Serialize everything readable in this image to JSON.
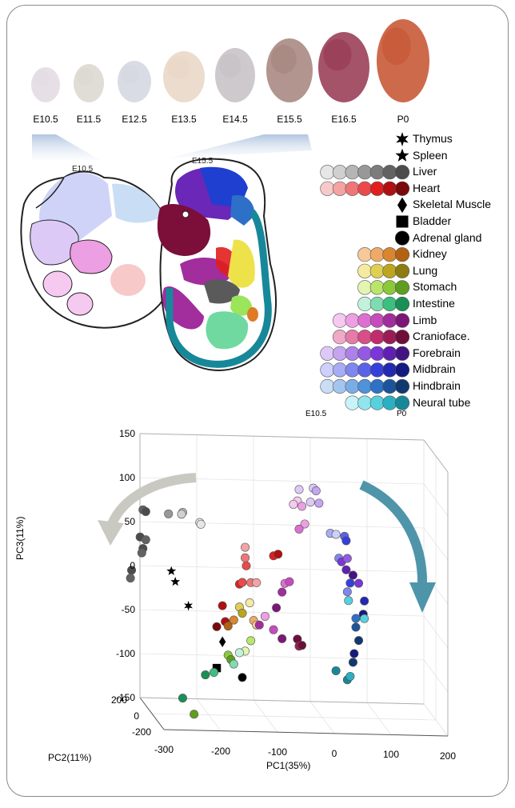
{
  "stages": [
    "E10.5",
    "E11.5",
    "E12.5",
    "E13.5",
    "E14.5",
    "E15.5",
    "E16.5",
    "P0"
  ],
  "diagram": {
    "left_label": "E10.5",
    "right_label": "E15.5"
  },
  "legend": {
    "items": [
      {
        "name": "Thymus",
        "marker": "star6",
        "colors": [
          "#000000"
        ]
      },
      {
        "name": "Spleen",
        "marker": "star5",
        "colors": [
          "#000000"
        ]
      },
      {
        "name": "Liver",
        "marker": "circle",
        "colors": [
          "#e6e6e6",
          "#d0d0d0",
          "#b5b5b5",
          "#989898",
          "#7c7c7c",
          "#626262",
          "#4c4c4c"
        ]
      },
      {
        "name": "Heart",
        "marker": "circle",
        "colors": [
          "#f7c9c9",
          "#f4a3a3",
          "#ef7676",
          "#ea4a4a",
          "#e11e1e",
          "#b01010",
          "#7a0909"
        ]
      },
      {
        "name": "Skeletal Muscle",
        "marker": "diamond",
        "colors": [
          "#000000"
        ]
      },
      {
        "name": "Bladder",
        "marker": "square",
        "colors": [
          "#000000"
        ]
      },
      {
        "name": "Adrenal gland",
        "marker": "circle",
        "colors": [
          "#000000"
        ]
      },
      {
        "name": "Kidney",
        "marker": "circle",
        "colors": [
          "#f7c89a",
          "#eeaa66",
          "#d9862f",
          "#b36212"
        ]
      },
      {
        "name": "Lung",
        "marker": "circle",
        "colors": [
          "#f4eaa0",
          "#dfcf52",
          "#bda520",
          "#8e7c10"
        ]
      },
      {
        "name": "Stomach",
        "marker": "circle",
        "colors": [
          "#e3f5b0",
          "#b9e66a",
          "#8cc93a",
          "#5e9d20"
        ]
      },
      {
        "name": "Intestine",
        "marker": "circle",
        "colors": [
          "#c3f2dc",
          "#7fdcb0",
          "#3cbf80",
          "#1a8f56"
        ]
      },
      {
        "name": "Limb",
        "marker": "circle",
        "colors": [
          "#f5c9f0",
          "#ec9fe2",
          "#dd6fd2",
          "#c64cbd",
          "#a22d9d",
          "#7c1777"
        ]
      },
      {
        "name": "Craniofacе.",
        "marker": "circle",
        "colors": [
          "#f1a9c8",
          "#e67aa8",
          "#d94d89",
          "#c22b6d",
          "#9a1c55",
          "#6f0e3a"
        ]
      },
      {
        "name": "Forebrain",
        "marker": "circle",
        "colors": [
          "#ddc9f6",
          "#c5a4f0",
          "#ad80ea",
          "#9459e2",
          "#7b35d8",
          "#5f20b2",
          "#441383"
        ]
      },
      {
        "name": "Midbrain",
        "marker": "circle",
        "colors": [
          "#cdd0fa",
          "#a7adf5",
          "#7f86ef",
          "#5a63e8",
          "#3540dc",
          "#2329b1",
          "#151a80"
        ]
      },
      {
        "name": "Hindbrain",
        "marker": "circle",
        "colors": [
          "#c9def5",
          "#a3c6ee",
          "#7aade6",
          "#4f91db",
          "#2d72c7",
          "#1c549b",
          "#103970"
        ]
      },
      {
        "name": "Neural tube",
        "marker": "circle",
        "colors": [
          "#c7f4f8",
          "#90e5ee",
          "#58d0de",
          "#2bb0c2",
          "#17889a"
        ]
      }
    ],
    "start_label": "E10.5",
    "end_label": "P0"
  },
  "chart_data": {
    "type": "scatter",
    "dimensions": 3,
    "xlabel": "PC1(35%)",
    "ylabel": "PC2(11%)",
    "zlabel": "PC3(11%)",
    "x_ticks": [
      -300,
      -200,
      -100,
      0,
      100,
      200
    ],
    "y_ticks": [
      -200,
      0,
      200
    ],
    "z_ticks": [
      -150,
      -100,
      -50,
      0,
      50,
      100,
      150
    ],
    "xlim": [
      -300,
      200
    ],
    "ylim": [
      -200,
      200
    ],
    "zlim": [
      -150,
      150
    ],
    "grid": true,
    "points": [
      {
        "group": "Liver",
        "x": -300,
        "y": 150,
        "z": 68,
        "color": "#626262"
      },
      {
        "group": "Liver",
        "x": -295,
        "y": 150,
        "z": 66,
        "color": "#4c4c4c"
      },
      {
        "group": "Liver",
        "x": -255,
        "y": 150,
        "z": 64,
        "color": "#989898"
      },
      {
        "group": "Liver",
        "x": -230,
        "y": 150,
        "z": 66,
        "color": "#b5b5b5"
      },
      {
        "group": "Liver",
        "x": -232,
        "y": 150,
        "z": 64,
        "color": "#d0d0d0"
      },
      {
        "group": "Liver",
        "x": -200,
        "y": 150,
        "z": 55,
        "color": "#e6e6e6"
      },
      {
        "group": "Liver",
        "x": -198,
        "y": 150,
        "z": 53,
        "color": "#e6e6e6"
      },
      {
        "group": "Liver",
        "x": -305,
        "y": 150,
        "z": 37,
        "color": "#4c4c4c"
      },
      {
        "group": "Liver",
        "x": -295,
        "y": 150,
        "z": 34,
        "color": "#626262"
      },
      {
        "group": "Liver",
        "x": -300,
        "y": 150,
        "z": 24,
        "color": "#4c4c4c"
      },
      {
        "group": "Liver",
        "x": -302,
        "y": 150,
        "z": 19,
        "color": "#626262"
      },
      {
        "group": "Liver",
        "x": -320,
        "y": 150,
        "z": -1,
        "color": "#4c4c4c"
      },
      {
        "group": "Liver",
        "x": -322,
        "y": 150,
        "z": -10,
        "color": "#626262"
      },
      {
        "group": "Spleen",
        "x": -250,
        "y": 150,
        "z": -1,
        "color": "#000000",
        "marker": "star5"
      },
      {
        "group": "Spleen",
        "x": -243,
        "y": 150,
        "z": -13,
        "color": "#000000",
        "marker": "star5"
      },
      {
        "group": "Thymus",
        "x": -220,
        "y": 150,
        "z": -40,
        "color": "#000000",
        "marker": "star6"
      },
      {
        "group": "Heart",
        "x": -160,
        "y": 150,
        "z": -39,
        "color": "#b01010"
      },
      {
        "group": "Heart",
        "x": -170,
        "y": 150,
        "z": -63,
        "color": "#7a0909"
      },
      {
        "group": "Heart",
        "x": -155,
        "y": 150,
        "z": -57,
        "color": "#b01010"
      },
      {
        "group": "Heart",
        "x": -130,
        "y": 150,
        "z": -14,
        "color": "#e11e1e"
      },
      {
        "group": "Heart",
        "x": -125,
        "y": 150,
        "z": -12,
        "color": "#ea4a4a"
      },
      {
        "group": "Heart",
        "x": -110,
        "y": 150,
        "z": -12,
        "color": "#ef7676"
      },
      {
        "group": "Heart",
        "x": -100,
        "y": 150,
        "z": -12,
        "color": "#f4a3a3"
      },
      {
        "group": "Heart",
        "x": -120,
        "y": 150,
        "z": 28,
        "color": "#f4a3a3"
      },
      {
        "group": "Heart",
        "x": -120,
        "y": 150,
        "z": 16,
        "color": "#ef7676"
      },
      {
        "group": "Heart",
        "x": -118,
        "y": 150,
        "z": 7,
        "color": "#ea4a4a"
      },
      {
        "group": "Heart",
        "x": -70,
        "y": 150,
        "z": 19,
        "color": "#e11e1e"
      },
      {
        "group": "Heart",
        "x": -62,
        "y": 150,
        "z": 21,
        "color": "#b01010"
      },
      {
        "group": "Skeletal Muscle",
        "x": -160,
        "y": 150,
        "z": -80,
        "color": "#000000",
        "marker": "diamond"
      },
      {
        "group": "Bladder",
        "x": -170,
        "y": 150,
        "z": -110,
        "color": "#000000",
        "marker": "square"
      },
      {
        "group": "Adrenal gland",
        "x": -125,
        "y": 150,
        "z": -120,
        "color": "#000000"
      },
      {
        "group": "Lung",
        "x": -130,
        "y": 150,
        "z": -40,
        "color": "#dfcf52"
      },
      {
        "group": "Lung",
        "x": -125,
        "y": 150,
        "z": -47,
        "color": "#bda520"
      },
      {
        "group": "Lung",
        "x": -112,
        "y": 150,
        "z": -35,
        "color": "#f4eaa0"
      },
      {
        "group": "Kidney",
        "x": -140,
        "y": 150,
        "z": -55,
        "color": "#d9862f"
      },
      {
        "group": "Kidney",
        "x": -150,
        "y": 150,
        "z": -62,
        "color": "#b36212"
      },
      {
        "group": "Kidney",
        "x": -105,
        "y": 150,
        "z": -55,
        "color": "#eeaa66"
      },
      {
        "group": "Kidney",
        "x": -100,
        "y": 150,
        "z": -60,
        "color": "#f7c89a"
      },
      {
        "group": "Stomach",
        "x": -150,
        "y": 150,
        "z": -95,
        "color": "#8cc93a"
      },
      {
        "group": "Stomach",
        "x": -145,
        "y": 150,
        "z": -100,
        "color": "#5e9d20"
      },
      {
        "group": "Stomach",
        "x": -120,
        "y": 150,
        "z": -90,
        "color": "#e3f5b0"
      },
      {
        "group": "Stomach",
        "x": -110,
        "y": 150,
        "z": -78,
        "color": "#b9e66a"
      },
      {
        "group": "Intestine",
        "x": -175,
        "y": 150,
        "z": -115,
        "color": "#3cbf80"
      },
      {
        "group": "Intestine",
        "x": -190,
        "y": 150,
        "z": -118,
        "color": "#1a8f56"
      },
      {
        "group": "Intestine",
        "x": -140,
        "y": 150,
        "z": -105,
        "color": "#7fdcb0"
      },
      {
        "group": "Intestine",
        "x": -130,
        "y": 150,
        "z": -92,
        "color": "#c3f2dc"
      },
      {
        "group": "Intestine",
        "x": -230,
        "y": 150,
        "z": -145,
        "color": "#1a8f56"
      },
      {
        "group": "Intestine",
        "x": -210,
        "y": 150,
        "z": -163,
        "color": "#5e9d20"
      },
      {
        "group": "Limb",
        "x": -50,
        "y": 150,
        "z": -12,
        "color": "#dd6fd2"
      },
      {
        "group": "Limb",
        "x": -42,
        "y": 150,
        "z": -10,
        "color": "#c64cbd"
      },
      {
        "group": "Limb",
        "x": -55,
        "y": 150,
        "z": -22,
        "color": "#a22d9d"
      },
      {
        "group": "Limb",
        "x": -65,
        "y": 150,
        "z": -40,
        "color": "#7c1777"
      },
      {
        "group": "Limb",
        "x": -85,
        "y": 150,
        "z": -50,
        "color": "#ec9fe2"
      },
      {
        "group": "Limb",
        "x": -95,
        "y": 150,
        "z": -60,
        "color": "#a22d9d"
      },
      {
        "group": "Limb",
        "x": -70,
        "y": 150,
        "z": -65,
        "color": "#c64cbd"
      },
      {
        "group": "Limb",
        "x": -55,
        "y": 150,
        "z": -75,
        "color": "#7c1777"
      },
      {
        "group": "Limb",
        "x": -28,
        "y": 150,
        "z": -75,
        "color": "#6f0e3a"
      },
      {
        "group": "Craniofacе.",
        "x": -25,
        "y": 150,
        "z": -83,
        "color": "#9a1c55"
      },
      {
        "group": "Craniofacе.",
        "x": -20,
        "y": 150,
        "z": -82,
        "color": "#6f0e3a"
      },
      {
        "group": "Forebrain",
        "x": -25,
        "y": 150,
        "z": 95,
        "color": "#ddc9f6"
      },
      {
        "group": "Forebrain",
        "x": 0,
        "y": 150,
        "z": 97,
        "color": "#ddc9f6"
      },
      {
        "group": "Forebrain",
        "x": 5,
        "y": 150,
        "z": 94,
        "color": "#c5a4f0"
      },
      {
        "group": "Forebrain",
        "x": -28,
        "y": 150,
        "z": 82,
        "color": "#f5c9f0"
      },
      {
        "group": "Forebrain",
        "x": -35,
        "y": 150,
        "z": 78,
        "color": "#f5c9f0"
      },
      {
        "group": "Forebrain",
        "x": -20,
        "y": 150,
        "z": 76,
        "color": "#ec9fe2"
      },
      {
        "group": "Forebrain",
        "x": -5,
        "y": 150,
        "z": 81,
        "color": "#ddc9f6"
      },
      {
        "group": "Forebrain",
        "x": 10,
        "y": 150,
        "z": 80,
        "color": "#c5a4f0"
      },
      {
        "group": "Forebrain",
        "x": -15,
        "y": 150,
        "z": 56,
        "color": "#ec9fe2"
      },
      {
        "group": "Forebrain",
        "x": -25,
        "y": 150,
        "z": 50,
        "color": "#dd6fd2"
      },
      {
        "group": "Forebrain",
        "x": 30,
        "y": 150,
        "z": 46,
        "color": "#a7adf5"
      },
      {
        "group": "Forebrain",
        "x": 40,
        "y": 150,
        "z": 45,
        "color": "#cdd0fa"
      },
      {
        "group": "Forebrain",
        "x": 55,
        "y": 150,
        "z": 43,
        "color": "#5a63e8"
      },
      {
        "group": "Forebrain",
        "x": 58,
        "y": 150,
        "z": 38,
        "color": "#3540dc"
      },
      {
        "group": "Forebrain",
        "x": 45,
        "y": 150,
        "z": 18,
        "color": "#7f86ef"
      },
      {
        "group": "Forebrain",
        "x": 50,
        "y": 150,
        "z": 14,
        "color": "#7b35d8"
      },
      {
        "group": "Forebrain",
        "x": 60,
        "y": 150,
        "z": 18,
        "color": "#9459e2"
      },
      {
        "group": "Forebrain",
        "x": 58,
        "y": 150,
        "z": 5,
        "color": "#5f20b2"
      },
      {
        "group": "Forebrain",
        "x": 70,
        "y": 150,
        "z": -1,
        "color": "#441383"
      },
      {
        "group": "Forebrain",
        "x": 80,
        "y": 150,
        "z": -10,
        "color": "#7b35d8"
      },
      {
        "group": "Midbrain",
        "x": 65,
        "y": 150,
        "z": -10,
        "color": "#3540dc"
      },
      {
        "group": "Midbrain",
        "x": 60,
        "y": 150,
        "z": -20,
        "color": "#7f86ef"
      },
      {
        "group": "Midbrain",
        "x": 62,
        "y": 150,
        "z": -30,
        "color": "#58d0de"
      },
      {
        "group": "Midbrain",
        "x": 90,
        "y": 150,
        "z": -30,
        "color": "#2329b1"
      },
      {
        "group": "Midbrain",
        "x": 88,
        "y": 150,
        "z": -45,
        "color": "#151a80"
      },
      {
        "group": "Midbrain",
        "x": 75,
        "y": 150,
        "z": -50,
        "color": "#2d72c7"
      },
      {
        "group": "Midbrain",
        "x": 75,
        "y": 150,
        "z": -60,
        "color": "#1c549b"
      },
      {
        "group": "Hindbrain",
        "x": 90,
        "y": 150,
        "z": -50,
        "color": "#58d0de"
      },
      {
        "group": "Hindbrain",
        "x": 80,
        "y": 150,
        "z": -75,
        "color": "#103970"
      },
      {
        "group": "Hindbrain",
        "x": 72,
        "y": 150,
        "z": -90,
        "color": "#151a80"
      },
      {
        "group": "Hindbrain",
        "x": 70,
        "y": 150,
        "z": -100,
        "color": "#103970"
      },
      {
        "group": "Neural tube",
        "x": 40,
        "y": 150,
        "z": -110,
        "color": "#17889a"
      },
      {
        "group": "Neural tube",
        "x": 60,
        "y": 150,
        "z": -120,
        "color": "#17889a"
      },
      {
        "group": "Neural tube",
        "x": 65,
        "y": 150,
        "z": -116,
        "color": "#2bb0c2"
      }
    ]
  }
}
